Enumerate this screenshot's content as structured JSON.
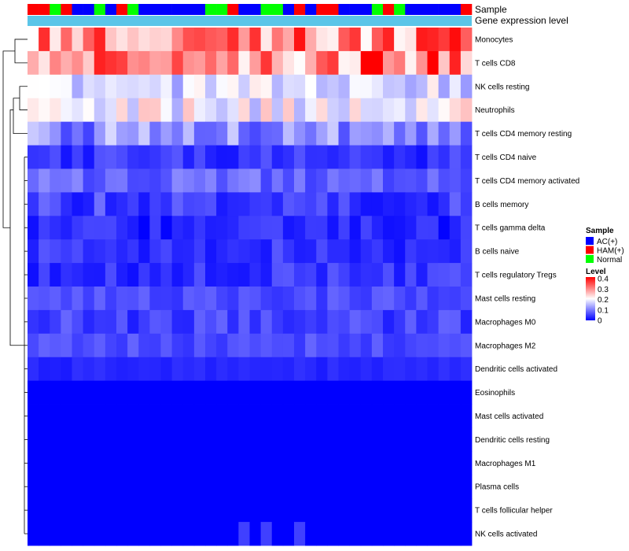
{
  "chart_data": {
    "type": "heatmap",
    "title": "",
    "annotation_rows": [
      "Sample",
      "Gene expression level"
    ],
    "rows": [
      "Monocytes",
      "T cells CD8",
      "NK cells resting",
      "Neutrophils",
      "T cells CD4 memory resting",
      "T cells CD4 naive",
      "T cells CD4 memory activated",
      "B cells memory",
      "T cells gamma delta",
      "B cells naive",
      "T cells regulatory  Tregs",
      "Mast cells resting",
      "Macrophages M0",
      "Macrophages M2",
      "Dendritic cells activated",
      "Eosinophils",
      "Mast cells activated",
      "Dendritic cells resting",
      "Macrophages M1",
      "Plasma cells",
      "T cells follicular helper",
      "NK cells activated"
    ],
    "sample_groups": [
      "HAM(+)",
      "HAM(+)",
      "Normal",
      "HAM(+)",
      "AC(+)",
      "AC(+)",
      "Normal",
      "AC(+)",
      "HAM(+)",
      "Normal",
      "AC(+)",
      "AC(+)",
      "AC(+)",
      "AC(+)",
      "AC(+)",
      "AC(+)",
      "Normal",
      "Normal",
      "HAM(+)",
      "AC(+)",
      "AC(+)",
      "Normal",
      "Normal",
      "AC(+)",
      "HAM(+)",
      "AC(+)",
      "HAM(+)",
      "HAM(+)",
      "AC(+)",
      "AC(+)",
      "AC(+)",
      "Normal",
      "HAM(+)",
      "Normal",
      "AC(+)",
      "AC(+)",
      "AC(+)",
      "AC(+)",
      "AC(+)",
      "HAM(+)"
    ],
    "group_colors": {
      "AC(+)": "#0000ff",
      "HAM(+)": "#ff0000",
      "Normal": "#00ff00"
    },
    "expression_bar_color": "#5bc5e8",
    "row_base_values": [
      0.3,
      0.3,
      0.17,
      0.19,
      0.11,
      0.04,
      0.08,
      0.05,
      0.03,
      0.04,
      0.04,
      0.06,
      0.05,
      0.06,
      0.03,
      0.0,
      0.0,
      0.0,
      0.0,
      0.0,
      0.0,
      0.0
    ],
    "row_amplitude": [
      0.1,
      0.1,
      0.05,
      0.06,
      0.06,
      0.03,
      0.03,
      0.04,
      0.03,
      0.03,
      0.03,
      0.02,
      0.03,
      0.02,
      0.01,
      0.0,
      0.0,
      0.0,
      0.0,
      0.0,
      0.0,
      0.015
    ],
    "legend": {
      "sample_title": "Sample",
      "sample_entries": [
        "AC(+)",
        "HAM(+)",
        "Normal"
      ],
      "level_title": "Level",
      "level_ticks": [
        "0.4",
        "0.3",
        "0.2",
        "0.1",
        "0"
      ],
      "level_range": [
        0,
        0.4
      ],
      "colors": {
        "low": "#0000ff",
        "mid": "#ffffff",
        "high": "#ff0000"
      }
    }
  }
}
